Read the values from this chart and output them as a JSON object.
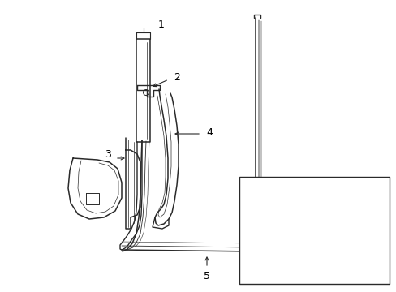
{
  "background_color": "#ffffff",
  "line_color": "#2a2a2a",
  "label_color": "#000000",
  "figsize": [
    4.89,
    3.6
  ],
  "dpi": 100
}
